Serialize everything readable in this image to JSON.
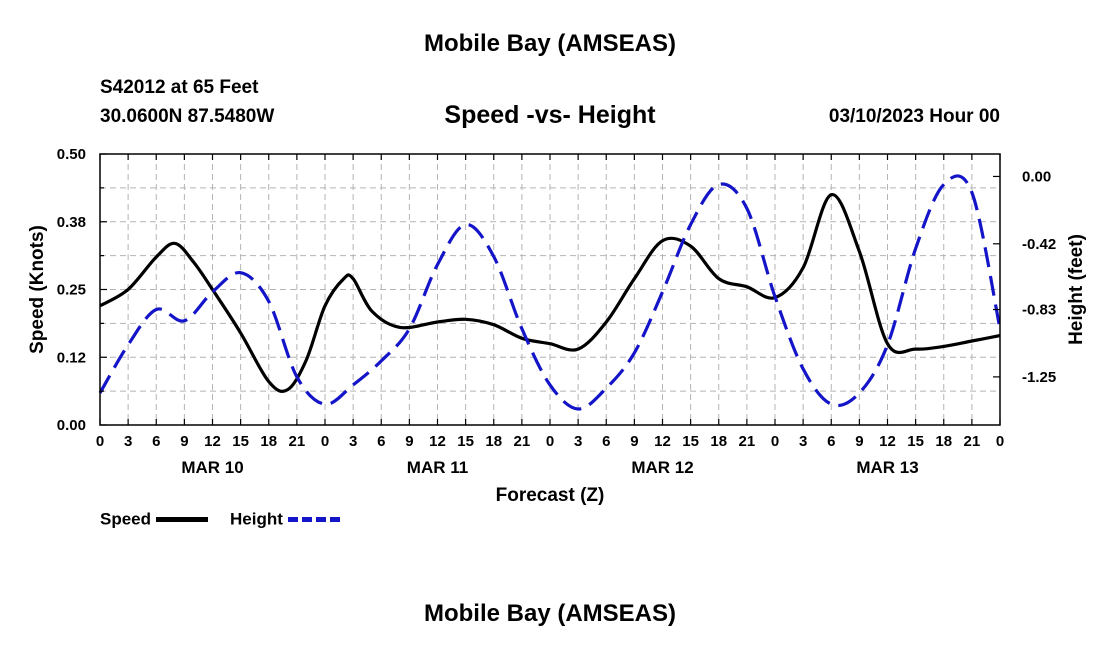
{
  "header": {
    "title": "Mobile Bay (AMSEAS)",
    "station": "S42012 at 65 Feet",
    "coords": "30.0600N  87.5480W",
    "datetime": "03/10/2023 Hour 00"
  },
  "footer": {
    "title": "Mobile Bay (AMSEAS)"
  },
  "legend": {
    "items": [
      {
        "label": "Speed",
        "color": "#000000",
        "style": "solid"
      },
      {
        "label": "Height",
        "color": "#1414c8",
        "style": "dashed"
      }
    ]
  },
  "chart_data": {
    "type": "line",
    "title": "Speed -vs- Height",
    "xlabel": "Forecast (Z)",
    "ylabel": "Speed (Knots)",
    "y2label": "Height (feet)",
    "grid": true,
    "legend_position": "bottom-left",
    "x_range": [
      0,
      96
    ],
    "x_tick_labels": [
      "0",
      "3",
      "6",
      "9",
      "12",
      "15",
      "18",
      "21",
      "0",
      "3",
      "6",
      "9",
      "12",
      "15",
      "18",
      "21",
      "0",
      "3",
      "6",
      "9",
      "12",
      "15",
      "18",
      "21",
      "0",
      "3",
      "6",
      "9",
      "12",
      "15",
      "18",
      "21",
      "0"
    ],
    "day_labels": [
      "MAR 10",
      "MAR 11",
      "MAR 12",
      "MAR 13"
    ],
    "ylim": [
      0,
      0.5
    ],
    "y_ticks": [
      "0.00",
      "0.12",
      "0.25",
      "0.38",
      "0.50"
    ],
    "y2lim": [
      -1.55,
      0.14
    ],
    "y2_ticks": [
      "0.00",
      "-0.42",
      "-0.83",
      "-1.25"
    ],
    "series": [
      {
        "name": "Speed",
        "axis": "left",
        "color": "#000000",
        "x": [
          0,
          3,
          6,
          8,
          10,
          12,
          15,
          18,
          20,
          22,
          24,
          26,
          27,
          29,
          32,
          36,
          39,
          42,
          45,
          48,
          51,
          54,
          57,
          60,
          63,
          66,
          69,
          72,
          75,
          78,
          81,
          84,
          87,
          90,
          93,
          96
        ],
        "values": [
          0.22,
          0.25,
          0.31,
          0.335,
          0.3,
          0.25,
          0.17,
          0.08,
          0.065,
          0.12,
          0.22,
          0.27,
          0.27,
          0.21,
          0.18,
          0.19,
          0.195,
          0.185,
          0.16,
          0.15,
          0.14,
          0.19,
          0.27,
          0.34,
          0.33,
          0.27,
          0.255,
          0.235,
          0.29,
          0.425,
          0.32,
          0.15,
          0.14,
          0.145,
          0.155,
          0.165
        ]
      },
      {
        "name": "Height",
        "axis": "right",
        "color": "#1414c8",
        "x": [
          0,
          3,
          6,
          9,
          12,
          15,
          18,
          21,
          24,
          27,
          30,
          33,
          36,
          39,
          42,
          45,
          48,
          51,
          54,
          57,
          60,
          63,
          66,
          69,
          72,
          75,
          78,
          81,
          84,
          87,
          90,
          93,
          96
        ],
        "values": [
          -1.35,
          -1.05,
          -0.83,
          -0.9,
          -0.72,
          -0.6,
          -0.78,
          -1.25,
          -1.42,
          -1.3,
          -1.15,
          -0.95,
          -0.55,
          -0.3,
          -0.5,
          -0.95,
          -1.3,
          -1.45,
          -1.32,
          -1.1,
          -0.72,
          -0.3,
          -0.05,
          -0.2,
          -0.75,
          -1.2,
          -1.42,
          -1.35,
          -1.05,
          -0.45,
          -0.05,
          -0.1,
          -0.95
        ]
      }
    ]
  }
}
